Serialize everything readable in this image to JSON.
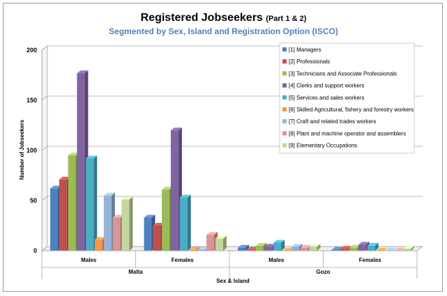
{
  "chart_data": {
    "type": "bar",
    "title": "Registered Jobseekers",
    "title_suffix": "(Part 1 & 2)",
    "subtitle": "Segmented by Sex, Island and Registration Option (ISCO)",
    "xlabel": "Sex & Island",
    "ylabel": "Number of Jobseekers",
    "ylim": [
      0,
      200
    ],
    "yticks": [
      0,
      50,
      100,
      150,
      200
    ],
    "grid": true,
    "legend_position": "top-right",
    "categories": [
      "Males",
      "Females",
      "Males",
      "Females"
    ],
    "groups": [
      {
        "label": "Malta",
        "categories": [
          "Males",
          "Females"
        ]
      },
      {
        "label": "Gozo",
        "categories": [
          "Males",
          "Females"
        ]
      }
    ],
    "series": [
      {
        "name": "[1] Managers",
        "color": "#4f81bd",
        "values": [
          62,
          33,
          3,
          1
        ]
      },
      {
        "name": "[2] Professionals",
        "color": "#c0504d",
        "values": [
          71,
          25,
          1,
          2
        ]
      },
      {
        "name": "[3] Technicians and Associate Professionals",
        "color": "#9bbb59",
        "values": [
          95,
          61,
          5,
          3
        ]
      },
      {
        "name": "[4] Clerks and support workers",
        "color": "#8064a2",
        "values": [
          177,
          120,
          4,
          6
        ]
      },
      {
        "name": "[5] Services and sales workers",
        "color": "#4bacc6",
        "values": [
          92,
          53,
          8,
          5
        ]
      },
      {
        "name": "[6] Skilled Agricultural, fishery and forestry workers",
        "color": "#f79646",
        "values": [
          11,
          1,
          0,
          0
        ]
      },
      {
        "name": "[7] Craft and related trades workers",
        "color": "#95b3d7",
        "values": [
          55,
          1,
          4,
          0
        ]
      },
      {
        "name": "[8] Plant and machine operator and assemblers",
        "color": "#d99694",
        "values": [
          33,
          16,
          3,
          0
        ]
      },
      {
        "name": "[9] Elementary Occupations",
        "color": "#c3d69b",
        "values": [
          51,
          12,
          4,
          2
        ]
      }
    ]
  }
}
